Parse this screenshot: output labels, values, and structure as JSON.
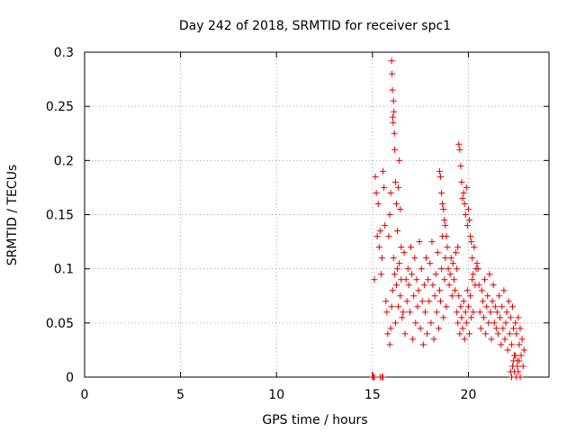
{
  "chart_data": {
    "type": "scatter",
    "title": "Day 242 of 2018, SRMTID for receiver spc1",
    "xlabel": "GPS time / hours",
    "ylabel": "SRMTID / TECUs",
    "xlim": [
      0,
      24.2
    ],
    "ylim": [
      0,
      0.3
    ],
    "x_ticks": [
      0,
      5,
      10,
      15,
      20
    ],
    "x_tick_labels": [
      "0",
      "5",
      "10",
      "15",
      "20"
    ],
    "y_ticks": [
      0,
      0.05,
      0.1,
      0.15,
      0.2,
      0.25,
      0.3
    ],
    "y_tick_labels": [
      "0",
      "0.05",
      "0.1",
      "0.15",
      "0.2",
      "0.25",
      "0.3"
    ],
    "grid": true,
    "marker": "+",
    "color": "#e00000",
    "series": [
      {
        "name": "SRMTID",
        "x": [
          15.0,
          15.05,
          15.1,
          15.4,
          15.5,
          15.55,
          15.1,
          15.15,
          15.2,
          15.25,
          15.3,
          15.35,
          15.4,
          15.45,
          15.5,
          15.55,
          15.6,
          15.65,
          15.7,
          15.75,
          15.8,
          15.85,
          15.9,
          15.95,
          16.0,
          16.02,
          16.04,
          16.06,
          16.08,
          16.1,
          16.12,
          16.14,
          16.16,
          16.2,
          16.25,
          16.3,
          16.35,
          16.4,
          16.45,
          16.5,
          15.9,
          15.95,
          16.0,
          16.05,
          16.1,
          16.15,
          16.2,
          16.25,
          16.3,
          16.35,
          16.4,
          16.45,
          16.5,
          16.55,
          16.6,
          16.65,
          16.7,
          16.75,
          16.8,
          16.85,
          16.9,
          16.95,
          17.0,
          17.05,
          17.1,
          17.15,
          17.2,
          17.25,
          17.3,
          17.35,
          17.4,
          17.45,
          17.5,
          17.55,
          17.6,
          17.65,
          17.7,
          17.75,
          17.8,
          17.85,
          17.9,
          17.95,
          18.0,
          18.05,
          18.1,
          18.15,
          18.2,
          18.25,
          18.3,
          18.35,
          18.4,
          18.45,
          18.5,
          18.55,
          18.6,
          18.65,
          18.7,
          18.75,
          18.8,
          18.85,
          18.5,
          18.55,
          18.6,
          18.65,
          18.7,
          18.75,
          18.8,
          18.85,
          18.9,
          18.95,
          19.0,
          19.05,
          19.1,
          19.15,
          19.2,
          19.25,
          19.3,
          19.35,
          19.4,
          19.45,
          19.5,
          19.55,
          19.6,
          19.65,
          19.7,
          19.75,
          19.8,
          19.85,
          19.9,
          19.95,
          20.0,
          20.05,
          20.1,
          20.15,
          20.2,
          20.25,
          20.3,
          20.35,
          20.4,
          20.45,
          19.4,
          19.45,
          19.5,
          19.55,
          19.6,
          19.65,
          19.7,
          19.75,
          19.8,
          19.85,
          19.9,
          19.95,
          20.0,
          20.05,
          20.1,
          20.15,
          20.2,
          20.25,
          20.5,
          20.55,
          20.6,
          20.65,
          20.7,
          20.75,
          20.8,
          20.85,
          20.9,
          20.95,
          21.0,
          21.05,
          21.1,
          21.15,
          21.2,
          21.25,
          21.3,
          21.35,
          21.4,
          21.45,
          21.5,
          21.55,
          21.6,
          21.65,
          21.7,
          21.75,
          21.8,
          21.85,
          21.9,
          21.95,
          22.0,
          22.05,
          22.1,
          22.15,
          22.2,
          22.25,
          22.3,
          22.35,
          22.4,
          22.45,
          22.5,
          22.55,
          22.6,
          22.65,
          22.7,
          22.75,
          22.8,
          22.85,
          22.9,
          22.2,
          22.25,
          22.3,
          22.35,
          22.4,
          22.45,
          22.5,
          22.55,
          22.6,
          22.65,
          22.7
        ],
        "y": [
          0.0,
          0.0,
          0.0,
          0.0,
          0.0,
          0.0,
          0.09,
          0.185,
          0.17,
          0.13,
          0.16,
          0.12,
          0.135,
          0.095,
          0.11,
          0.19,
          0.175,
          0.14,
          0.07,
          0.06,
          0.04,
          0.13,
          0.15,
          0.17,
          0.292,
          0.28,
          0.265,
          0.24,
          0.235,
          0.255,
          0.245,
          0.225,
          0.21,
          0.18,
          0.16,
          0.135,
          0.175,
          0.2,
          0.155,
          0.12,
          0.03,
          0.045,
          0.065,
          0.08,
          0.11,
          0.095,
          0.05,
          0.085,
          0.1,
          0.065,
          0.105,
          0.075,
          0.09,
          0.055,
          0.06,
          0.115,
          0.04,
          0.09,
          0.07,
          0.1,
          0.085,
          0.06,
          0.12,
          0.095,
          0.035,
          0.075,
          0.11,
          0.05,
          0.09,
          0.065,
          0.08,
          0.125,
          0.045,
          0.1,
          0.07,
          0.03,
          0.085,
          0.06,
          0.11,
          0.04,
          0.09,
          0.07,
          0.105,
          0.05,
          0.125,
          0.085,
          0.035,
          0.075,
          0.095,
          0.06,
          0.115,
          0.045,
          0.08,
          0.07,
          0.1,
          0.13,
          0.055,
          0.09,
          0.11,
          0.065,
          0.19,
          0.185,
          0.17,
          0.16,
          0.155,
          0.145,
          0.14,
          0.13,
          0.12,
          0.1,
          0.085,
          0.095,
          0.11,
          0.075,
          0.105,
          0.09,
          0.08,
          0.115,
          0.1,
          0.12,
          0.215,
          0.21,
          0.195,
          0.18,
          0.165,
          0.17,
          0.16,
          0.15,
          0.175,
          0.14,
          0.155,
          0.145,
          0.13,
          0.125,
          0.11,
          0.095,
          0.12,
          0.085,
          0.1,
          0.105,
          0.06,
          0.05,
          0.075,
          0.04,
          0.065,
          0.055,
          0.045,
          0.07,
          0.035,
          0.06,
          0.05,
          0.08,
          0.065,
          0.04,
          0.075,
          0.055,
          0.09,
          0.06,
          0.1,
          0.085,
          0.06,
          0.045,
          0.08,
          0.07,
          0.055,
          0.09,
          0.04,
          0.065,
          0.075,
          0.05,
          0.095,
          0.06,
          0.035,
          0.07,
          0.085,
          0.05,
          0.065,
          0.045,
          0.06,
          0.04,
          0.075,
          0.055,
          0.03,
          0.065,
          0.045,
          0.08,
          0.035,
          0.05,
          0.06,
          0.025,
          0.07,
          0.04,
          0.055,
          0.03,
          0.065,
          0.045,
          0.02,
          0.05,
          0.04,
          0.015,
          0.055,
          0.03,
          0.045,
          0.02,
          0.035,
          0.01,
          0.025,
          0.005,
          0.0,
          0.01,
          0.015,
          0.005,
          0.02,
          0.0,
          0.01,
          0.005,
          0.015,
          0.0
        ]
      }
    ]
  }
}
